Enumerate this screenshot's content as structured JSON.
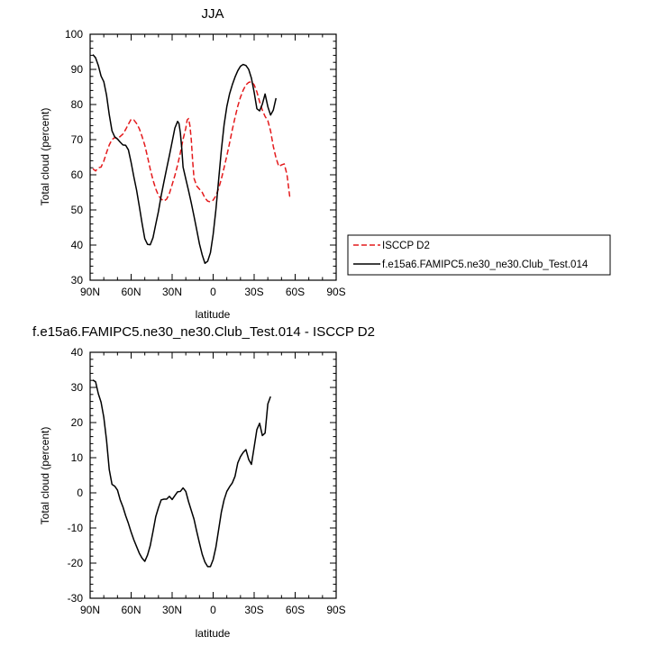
{
  "chart_data": [
    {
      "type": "line",
      "title": "JJA",
      "xlabel": "latitude",
      "ylabel": "Total cloud (percent)",
      "xlim": [
        90,
        -90
      ],
      "ylim": [
        30,
        100
      ],
      "x_ticks": [
        {
          "value": 90,
          "label": "90N"
        },
        {
          "value": 60,
          "label": "60N"
        },
        {
          "value": 30,
          "label": "30N"
        },
        {
          "value": 0,
          "label": "0"
        },
        {
          "value": -30,
          "label": "30S"
        },
        {
          "value": -60,
          "label": "60S"
        },
        {
          "value": -90,
          "label": "90S"
        }
      ],
      "y_ticks": [
        30,
        40,
        50,
        60,
        70,
        80,
        90,
        100
      ],
      "legend_placement": "right",
      "series": [
        {
          "name": "ISCCP D2",
          "color": "#e41a1c",
          "style": "dashed",
          "points": [
            [
              88,
              61.7
            ],
            [
              86,
              61.1
            ],
            [
              84,
              62
            ],
            [
              82,
              62.2
            ],
            [
              80,
              63.9
            ],
            [
              78,
              66.3
            ],
            [
              76,
              68.5
            ],
            [
              74,
              70
            ],
            [
              72,
              70.6
            ],
            [
              70,
              70.3
            ],
            [
              68,
              70.9
            ],
            [
              66,
              71.6
            ],
            [
              64,
              72.9
            ],
            [
              62,
              74.4
            ],
            [
              60,
              75.8
            ],
            [
              58,
              75.6
            ],
            [
              56,
              74.6
            ],
            [
              54,
              73.1
            ],
            [
              52,
              70.9
            ],
            [
              50,
              68.4
            ],
            [
              48,
              65.1
            ],
            [
              46,
              61.6
            ],
            [
              44,
              58.5
            ],
            [
              42,
              56
            ],
            [
              40,
              54.1
            ],
            [
              38,
              53.1
            ],
            [
              36,
              52.5
            ],
            [
              34,
              53.1
            ],
            [
              32,
              54.7
            ],
            [
              30,
              57.2
            ],
            [
              28,
              59.8
            ],
            [
              26,
              62.8
            ],
            [
              24,
              66.2
            ],
            [
              22,
              70.1
            ],
            [
              20,
              73.3
            ],
            [
              19,
              75.6
            ],
            [
              18,
              76
            ],
            [
              17,
              74
            ],
            [
              16,
              70
            ],
            [
              15,
              64
            ],
            [
              14,
              59
            ],
            [
              12,
              56.8
            ],
            [
              10,
              55.9
            ],
            [
              8,
              55
            ],
            [
              6,
              53.4
            ],
            [
              4,
              52.5
            ],
            [
              2,
              52.3
            ],
            [
              0,
              52.8
            ],
            [
              -2,
              54
            ],
            [
              -4,
              56.1
            ],
            [
              -6,
              58.8
            ],
            [
              -8,
              62
            ],
            [
              -10,
              65.4
            ],
            [
              -12,
              69
            ],
            [
              -14,
              72.8
            ],
            [
              -16,
              76.3
            ],
            [
              -18,
              79.5
            ],
            [
              -20,
              82.1
            ],
            [
              -22,
              84.1
            ],
            [
              -24,
              85.6
            ],
            [
              -26,
              86.3
            ],
            [
              -28,
              86.5
            ],
            [
              -30,
              85.6
            ],
            [
              -32,
              83.6
            ],
            [
              -34,
              80.8
            ],
            [
              -36,
              78.4
            ],
            [
              -38,
              76.6
            ],
            [
              -40,
              75.4
            ],
            [
              -42,
              72.5
            ],
            [
              -44,
              68.1
            ],
            [
              -46,
              64.8
            ],
            [
              -48,
              62.4
            ],
            [
              -50,
              62.8
            ],
            [
              -52,
              63.1
            ],
            [
              -54,
              60.1
            ],
            [
              -56,
              53.9
            ],
            [
              -58,
              53.7
            ]
          ]
        },
        {
          "name": "f.e15a6.FAMIPC5.ne30_ne30.Club_Test.014",
          "color": "#000000",
          "style": "solid",
          "points": [
            [
              88,
              94.2
            ],
            [
              86,
              93.3
            ],
            [
              84,
              91.1
            ],
            [
              82,
              88.1
            ],
            [
              80,
              86.5
            ],
            [
              78,
              82.7
            ],
            [
              76,
              77.1
            ],
            [
              74,
              72.5
            ],
            [
              72,
              70.8
            ],
            [
              70,
              70.2
            ],
            [
              68,
              69.3
            ],
            [
              66,
              68.5
            ],
            [
              64,
              68.4
            ],
            [
              62,
              67.1
            ],
            [
              60,
              63.5
            ],
            [
              58,
              59.4
            ],
            [
              56,
              55.6
            ],
            [
              54,
              51
            ],
            [
              52,
              46.2
            ],
            [
              50,
              41.8
            ],
            [
              48,
              40.2
            ],
            [
              46,
              40.1
            ],
            [
              44,
              42.1
            ],
            [
              42,
              45.9
            ],
            [
              40,
              49.6
            ],
            [
              38,
              54.1
            ],
            [
              36,
              58
            ],
            [
              34,
              61.8
            ],
            [
              32,
              65.5
            ],
            [
              30,
              69.4
            ],
            [
              28,
              73.3
            ],
            [
              26,
              75.2
            ],
            [
              25,
              74.6
            ],
            [
              24,
              72
            ],
            [
              23,
              67.7
            ],
            [
              22,
              62.2
            ],
            [
              20,
              58.8
            ],
            [
              18,
              55.5
            ],
            [
              16,
              52
            ],
            [
              14,
              48.2
            ],
            [
              12,
              44.3
            ],
            [
              10,
              40.3
            ],
            [
              8,
              37.2
            ],
            [
              6,
              34.8
            ],
            [
              4,
              35.4
            ],
            [
              2,
              37.8
            ],
            [
              0,
              43
            ],
            [
              -2,
              50
            ],
            [
              -4,
              58.5
            ],
            [
              -6,
              67
            ],
            [
              -8,
              74.2
            ],
            [
              -10,
              79.4
            ],
            [
              -12,
              83
            ],
            [
              -14,
              85.6
            ],
            [
              -16,
              87.8
            ],
            [
              -18,
              89.6
            ],
            [
              -20,
              90.9
            ],
            [
              -22,
              91.4
            ],
            [
              -24,
              91.1
            ],
            [
              -26,
              90
            ],
            [
              -28,
              87.5
            ],
            [
              -30,
              83.5
            ],
            [
              -32,
              78.8
            ],
            [
              -34,
              78.2
            ],
            [
              -36,
              80.1
            ],
            [
              -38,
              83
            ],
            [
              -40,
              79.4
            ],
            [
              -42,
              77
            ],
            [
              -44,
              78.4
            ],
            [
              -46,
              81.8
            ]
          ]
        }
      ]
    },
    {
      "type": "line",
      "title": "f.e15a6.FAMIPC5.ne30_ne30.Club_Test.014 - ISCCP D2",
      "xlabel": "latitude",
      "ylabel": "Total cloud (percent)",
      "xlim": [
        90,
        -90
      ],
      "ylim": [
        -30,
        40
      ],
      "x_ticks": [
        {
          "value": 90,
          "label": "90N"
        },
        {
          "value": 60,
          "label": "60N"
        },
        {
          "value": 30,
          "label": "30N"
        },
        {
          "value": 0,
          "label": "0"
        },
        {
          "value": -30,
          "label": "30S"
        },
        {
          "value": -60,
          "label": "60S"
        },
        {
          "value": -90,
          "label": "90S"
        }
      ],
      "y_ticks": [
        -30,
        -20,
        -10,
        0,
        10,
        20,
        30,
        40
      ],
      "series": [
        {
          "color": "#000000",
          "style": "solid",
          "points": [
            [
              88,
              32.1
            ],
            [
              86,
              31.6
            ],
            [
              84,
              28.2
            ],
            [
              82,
              25.8
            ],
            [
              80,
              21.5
            ],
            [
              78,
              15
            ],
            [
              76,
              6.6
            ],
            [
              74,
              2.4
            ],
            [
              72,
              1.9
            ],
            [
              70,
              0.8
            ],
            [
              68,
              -2
            ],
            [
              66,
              -4
            ],
            [
              64,
              -6.5
            ],
            [
              62,
              -8.7
            ],
            [
              60,
              -11.2
            ],
            [
              58,
              -13.4
            ],
            [
              56,
              -15.3
            ],
            [
              54,
              -17.2
            ],
            [
              52,
              -18.6
            ],
            [
              50,
              -19.5
            ],
            [
              48,
              -17.7
            ],
            [
              46,
              -15
            ],
            [
              44,
              -11
            ],
            [
              42,
              -6.8
            ],
            [
              40,
              -4.2
            ],
            [
              38,
              -2
            ],
            [
              36,
              -1.8
            ],
            [
              34,
              -1.8
            ],
            [
              32,
              -1
            ],
            [
              30,
              -1.9
            ],
            [
              28,
              -0.8
            ],
            [
              26,
              0.3
            ],
            [
              24,
              0.4
            ],
            [
              22,
              1.4
            ],
            [
              20,
              0.4
            ],
            [
              18,
              -2.5
            ],
            [
              16,
              -5
            ],
            [
              14,
              -7.5
            ],
            [
              12,
              -11
            ],
            [
              10,
              -14.3
            ],
            [
              8,
              -17.5
            ],
            [
              6,
              -19.7
            ],
            [
              4,
              -21
            ],
            [
              2,
              -21
            ],
            [
              0,
              -19
            ],
            [
              -2,
              -15.5
            ],
            [
              -4,
              -10.5
            ],
            [
              -6,
              -5.5
            ],
            [
              -8,
              -2
            ],
            [
              -10,
              0.4
            ],
            [
              -12,
              1.7
            ],
            [
              -14,
              2.8
            ],
            [
              -16,
              4.7
            ],
            [
              -18,
              8.5
            ],
            [
              -20,
              10.3
            ],
            [
              -22,
              11.5
            ],
            [
              -24,
              12.3
            ],
            [
              -26,
              9.5
            ],
            [
              -28,
              8.1
            ],
            [
              -30,
              13
            ],
            [
              -32,
              18
            ],
            [
              -34,
              19.8
            ],
            [
              -36,
              16.3
            ],
            [
              -38,
              17
            ],
            [
              -40,
              25.3
            ],
            [
              -42,
              27.4
            ]
          ]
        }
      ]
    }
  ]
}
